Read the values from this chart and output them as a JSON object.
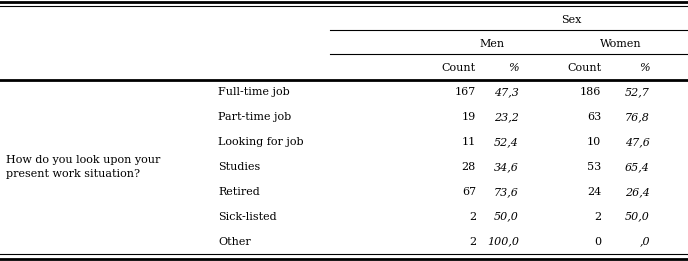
{
  "header_sex": "Sex",
  "header_men": "Men",
  "header_women": "Women",
  "row_label_main_line1": "How do you look upon your",
  "row_label_main_line2": "present work situation?",
  "row_labels": [
    "Full-time job",
    "Part-time job",
    "Looking for job",
    "Studies",
    "Retired",
    "Sick-listed",
    "Other"
  ],
  "men_count": [
    "167",
    "19",
    "11",
    "28",
    "67",
    "2",
    "2"
  ],
  "men_pct": [
    "47,3",
    "23,2",
    "52,4",
    "34,6",
    "73,6",
    "50,0",
    "100,0"
  ],
  "women_count": [
    "186",
    "63",
    "10",
    "53",
    "24",
    "2",
    "0"
  ],
  "women_pct": [
    "52,7",
    "76,8",
    "47,6",
    "65,4",
    "26,4",
    "50,0",
    ",0"
  ],
  "bg_color": "#ffffff",
  "text_color": "#000000",
  "font_size": 8.0
}
